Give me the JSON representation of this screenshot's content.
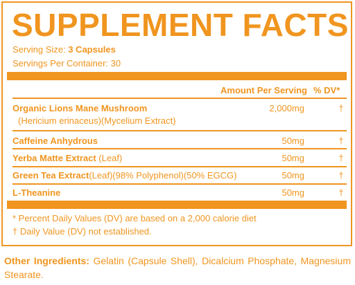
{
  "title": "SUPPLEMENT FACTS",
  "serving_size_label": "Serving Size:",
  "serving_size_value": "3 Capsules",
  "servings_per_container": "Servings Per Container: 30",
  "header": {
    "amount_per_serving": "Amount Per Serving",
    "dv": "% DV*"
  },
  "ingredients": [
    {
      "name": "Organic Lions Mane Mushroom",
      "detail": "(Hericium erinaceus)(Mycelium Extract)",
      "amount": "2,000mg",
      "dv": "†"
    },
    {
      "name": "Caffeine Anhydrous",
      "detail": "",
      "amount": "50mg",
      "dv": "†"
    },
    {
      "name": "Yerba Matte Extract",
      "detail": "(Leaf)",
      "amount": "50mg",
      "dv": "†"
    },
    {
      "name": "Green Tea Extract",
      "detail": "(Leaf)(98% Polyphenol)(50% EGCG)",
      "amount": "50mg",
      "dv": "†"
    },
    {
      "name": "L-Theanine",
      "detail": "",
      "amount": "50mg",
      "dv": "†"
    }
  ],
  "footnotes": [
    "* Percent Daily Values (DV) are based on a 2,000 calorie diet",
    "† Daily Value (DV) not established."
  ],
  "other_ingredients_label": "Other Ingredients:",
  "other_ingredients_text": "Gelatin (Capsule Shell), Dicalcium Phosphate, Magnesium Stearate.",
  "colors": {
    "accent": "#f0951f",
    "background": "#ffffff"
  }
}
